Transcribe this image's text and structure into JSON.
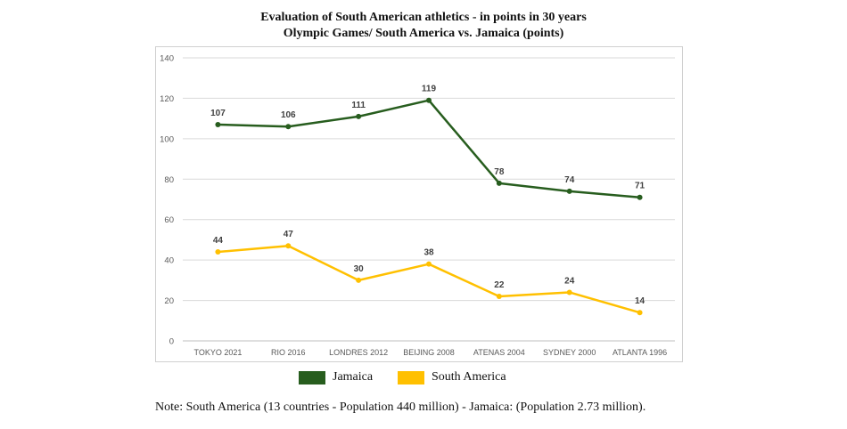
{
  "chart_data": {
    "type": "line",
    "title": "Evaluation of South American athletics - in points in 30 years",
    "subtitle": "Olympic Games/ South America vs. Jamaica (points)",
    "categories": [
      "TOKYO 2021",
      "RIO 2016",
      "LONDRES 2012",
      "BEIJING 2008",
      "ATENAS 2004",
      "SYDNEY 2000",
      "ATLANTA 1996"
    ],
    "series": [
      {
        "name": "Jamaica",
        "color": "#275d1e",
        "values": [
          107,
          106,
          111,
          119,
          78,
          74,
          71
        ]
      },
      {
        "name": "South America",
        "color": "#ffc000",
        "values": [
          44,
          47,
          30,
          38,
          22,
          24,
          14
        ]
      }
    ],
    "ylim": [
      0,
      140
    ],
    "yticks": [
      0,
      20,
      40,
      60,
      80,
      100,
      120,
      140
    ],
    "grid": true,
    "legend_position": "bottom",
    "data_labels": true
  },
  "note": "Note: South America (13 countries - Population 440 million) - Jamaica: (Population 2.73 million)."
}
